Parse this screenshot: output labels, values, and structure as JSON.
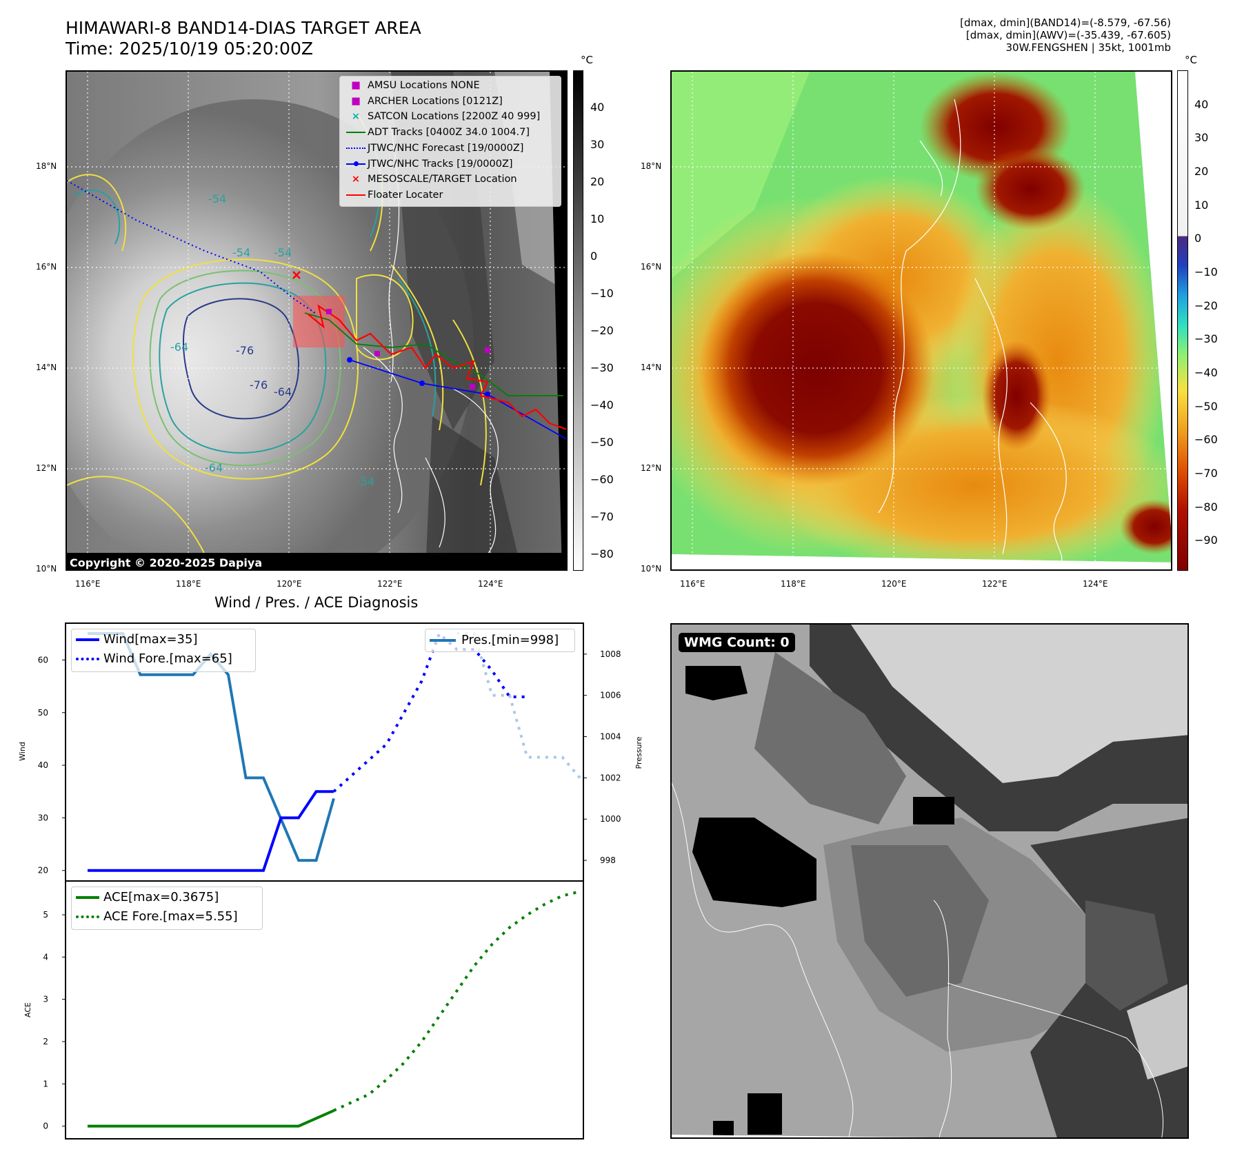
{
  "header": {
    "title_line1": "HIMAWARI-8 BAND14-DIAS TARGET AREA",
    "title_line2": "Time: 2025/10/19 05:20:00Z",
    "info_line1": "[dmax, dmin](BAND14)=(-8.579, -67.56)",
    "info_line2": "[dmax, dmin](AWV)=(-35.439, -67.605)",
    "info_line3": "30W.FENGSHEN | 35kt, 1001mb"
  },
  "map_axes": {
    "lat_labels": [
      "18°N",
      "16°N",
      "14°N",
      "12°N",
      "10°N"
    ],
    "lon_labels": [
      "116°E",
      "118°E",
      "120°E",
      "122°E",
      "124°E"
    ]
  },
  "ir_panel": {
    "legend": [
      {
        "label": "AMSU Locations NONE",
        "marker": "square",
        "color": "#c000c0"
      },
      {
        "label": "ARCHER Locations [0121Z]",
        "marker": "square",
        "color": "#c000c0"
      },
      {
        "label": "SATCON Locations [2200Z 40 999]",
        "marker": "x",
        "color": "#00b0b0"
      },
      {
        "label": "ADT Tracks [0400Z 34.0 1004.7]",
        "marker": "line",
        "color": "#008000"
      },
      {
        "label": "JTWC/NHC Forecast [19/0000Z]",
        "marker": "dotted",
        "color": "#0000ff"
      },
      {
        "label": "JTWC/NHC Tracks [19/0000Z]",
        "marker": "dotline",
        "color": "#0000ff"
      },
      {
        "label": "MESOSCALE/TARGET Location",
        "marker": "x",
        "color": "#ff0000"
      },
      {
        "label": "Floater Locater",
        "marker": "line",
        "color": "#ff0000"
      }
    ],
    "contour_labels": [
      "-54",
      "-54",
      "-64",
      "-76",
      "-76",
      "-64",
      "-54",
      "-64",
      "-54"
    ],
    "copyright": "Copyright © 2020-2025 Dapiya",
    "colorbar_unit": "°C",
    "colorbar_ticks": [
      "40",
      "30",
      "20",
      "10",
      "0",
      "−10",
      "−20",
      "−30",
      "−40",
      "−50",
      "−60",
      "−70",
      "−80"
    ]
  },
  "awv_panel": {
    "colorbar_unit": "°C",
    "colorbar_ticks": [
      "40",
      "30",
      "20",
      "10",
      "0",
      "−10",
      "−20",
      "−30",
      "−40",
      "−50",
      "−60",
      "−70",
      "−80",
      "−90"
    ]
  },
  "wmg_panel": {
    "label": "WMG Count: 0"
  },
  "chart_data": [
    {
      "type": "line",
      "title": "Wind / Pres. / ACE Diagnosis",
      "ylabel": "Wind",
      "ylabel_right": "Pressure",
      "ylim": [
        18,
        67
      ],
      "ylim_right": [
        997,
        1009.5
      ],
      "yticks": [
        "20",
        "30",
        "40",
        "50",
        "60"
      ],
      "yticks_right": [
        "998",
        "1000",
        "1002",
        "1004",
        "1006",
        "1008"
      ],
      "legend_left": [
        "Wind[max=35]",
        "Wind Fore.[max=65]"
      ],
      "legend_right": [
        "Pres.[min=998]"
      ],
      "series": [
        {
          "name": "Wind[max=35]",
          "x": [
            0,
            10,
            11,
            12,
            13,
            14
          ],
          "values": [
            20,
            20,
            30,
            30,
            35,
            35
          ]
        },
        {
          "name": "Wind Fore.[max=65]",
          "x": [
            14,
            15,
            16,
            17,
            18,
            19,
            20,
            21,
            22,
            23,
            24,
            25
          ],
          "values": [
            35,
            38,
            41,
            44,
            50,
            56,
            65,
            62,
            62,
            58,
            53,
            53
          ]
        },
        {
          "name": "Pres.[min=998]",
          "x": [
            0,
            2,
            3,
            4,
            5,
            6,
            7,
            8,
            9,
            10,
            11,
            12,
            13,
            14
          ],
          "values": [
            1009,
            1009,
            1007,
            1007,
            1007,
            1007,
            1008,
            1007,
            1002,
            1002,
            1000,
            998,
            998,
            1001
          ]
        },
        {
          "name": "",
          "x": [
            21,
            22,
            23,
            24,
            25,
            26,
            27,
            28
          ],
          "values": [
            1009,
            1009,
            1006,
            1006,
            1003,
            1003,
            1003,
            1002
          ]
        }
      ]
    },
    {
      "type": "line",
      "ylabel": "ACE",
      "ylim": [
        -0.3,
        5.8
      ],
      "yticks": [
        "0",
        "1",
        "2",
        "3",
        "4",
        "5"
      ],
      "legend": [
        "ACE[max=0.3675]",
        "ACE Fore.[max=5.55]"
      ],
      "series": [
        {
          "name": "ACE[max=0.3675]",
          "x": [
            0,
            2,
            4,
            6,
            8,
            10,
            12,
            14
          ],
          "values": [
            0,
            0,
            0,
            0,
            0,
            0,
            0,
            0.3675
          ]
        },
        {
          "name": "ACE Fore.[max=5.55]",
          "x": [
            14,
            16,
            17,
            18,
            19,
            20,
            21,
            22,
            23,
            24,
            25,
            26,
            27,
            28
          ],
          "values": [
            0.37,
            0.75,
            1.1,
            1.5,
            2.0,
            2.6,
            3.2,
            3.8,
            4.3,
            4.7,
            5.0,
            5.25,
            5.45,
            5.55
          ]
        }
      ]
    }
  ]
}
